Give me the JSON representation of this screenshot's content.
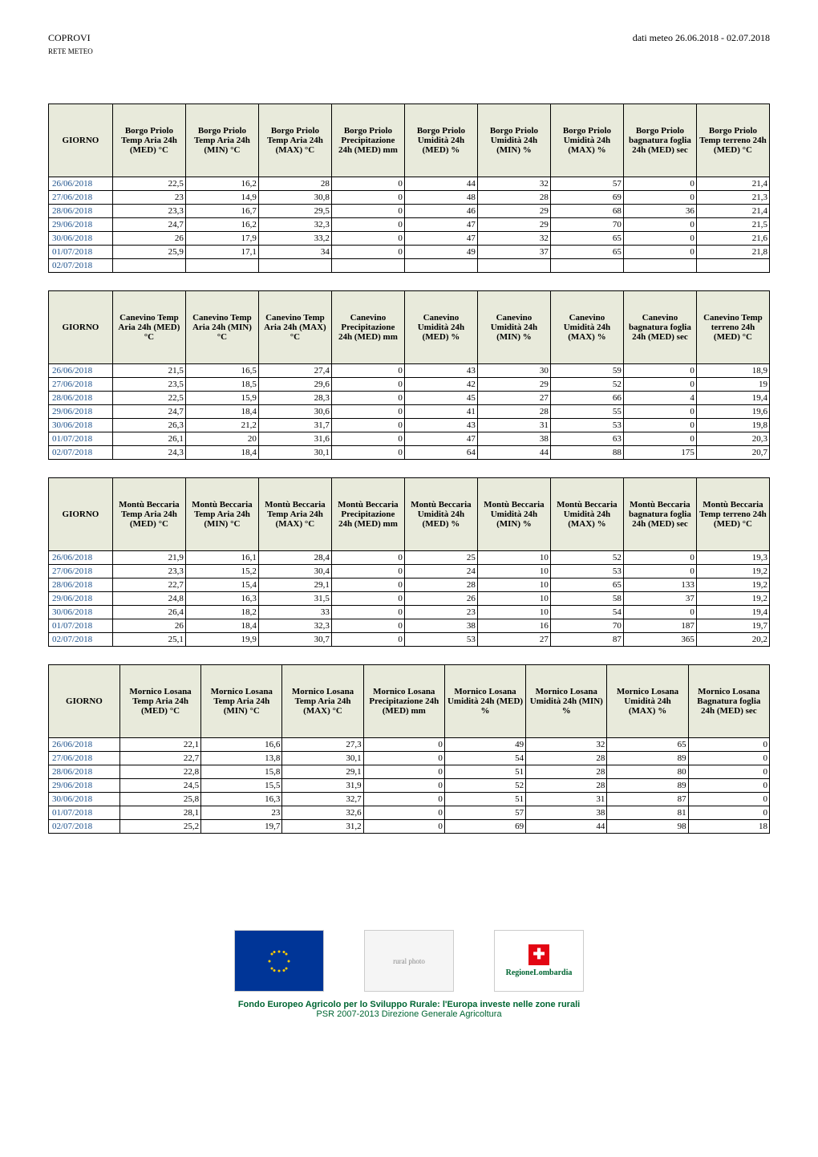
{
  "header": {
    "org": "COPROVI",
    "sub": "RETE METEO",
    "title": "dati meteo  26.06.2018 - 02.07.2018"
  },
  "column_labels": {
    "giorno": "GIORNO",
    "temp_med": "Temp Aria 24h (MED) °C",
    "temp_min": "Temp Aria 24h (MIN) °C",
    "temp_max": "Temp Aria 24h (MAX) °C",
    "precip": "Precipitazione 24h (MED) mm",
    "umid_med": "Umidità 24h (MED) %",
    "umid_min": "Umidità 24h (MIN) %",
    "umid_max": "Umidità 24h (MAX) %",
    "bagn": "bagnatura foglia 24h (MED) sec",
    "bagn_cap": "Bagnatura foglia 24h (MED) sec",
    "terr": "Temp terreno 24h (MED) °C"
  },
  "stations": [
    {
      "name": "Borgo Priolo",
      "has_terreno": true,
      "rows": [
        {
          "date": "26/06/2018",
          "tmed": "22,5",
          "tmin": "16,2",
          "tmax": "28",
          "prec": "0",
          "umed": "44",
          "umin": "32",
          "umax": "57",
          "bagn": "0",
          "terr": "21,4"
        },
        {
          "date": "27/06/2018",
          "tmed": "23",
          "tmin": "14,9",
          "tmax": "30,8",
          "prec": "0",
          "umed": "48",
          "umin": "28",
          "umax": "69",
          "bagn": "0",
          "terr": "21,3"
        },
        {
          "date": "28/06/2018",
          "tmed": "23,3",
          "tmin": "16,7",
          "tmax": "29,5",
          "prec": "0",
          "umed": "46",
          "umin": "29",
          "umax": "68",
          "bagn": "36",
          "terr": "21,4"
        },
        {
          "date": "29/06/2018",
          "tmed": "24,7",
          "tmin": "16,2",
          "tmax": "32,3",
          "prec": "0",
          "umed": "47",
          "umin": "29",
          "umax": "70",
          "bagn": "0",
          "terr": "21,5"
        },
        {
          "date": "30/06/2018",
          "tmed": "26",
          "tmin": "17,9",
          "tmax": "33,2",
          "prec": "0",
          "umed": "47",
          "umin": "32",
          "umax": "65",
          "bagn": "0",
          "terr": "21,6"
        },
        {
          "date": "01/07/2018",
          "tmed": "25,9",
          "tmin": "17,1",
          "tmax": "34",
          "prec": "0",
          "umed": "49",
          "umin": "37",
          "umax": "65",
          "bagn": "0",
          "terr": "21,8"
        },
        {
          "date": "02/07/2018",
          "tmed": "",
          "tmin": "",
          "tmax": "",
          "prec": "",
          "umed": "",
          "umin": "",
          "umax": "",
          "bagn": "",
          "terr": ""
        }
      ]
    },
    {
      "name": "Canevino",
      "has_terreno": true,
      "rows": [
        {
          "date": "26/06/2018",
          "tmed": "21,5",
          "tmin": "16,5",
          "tmax": "27,4",
          "prec": "0",
          "umed": "43",
          "umin": "30",
          "umax": "59",
          "bagn": "0",
          "terr": "18,9"
        },
        {
          "date": "27/06/2018",
          "tmed": "23,5",
          "tmin": "18,5",
          "tmax": "29,6",
          "prec": "0",
          "umed": "42",
          "umin": "29",
          "umax": "52",
          "bagn": "0",
          "terr": "19"
        },
        {
          "date": "28/06/2018",
          "tmed": "22,5",
          "tmin": "15,9",
          "tmax": "28,3",
          "prec": "0",
          "umed": "45",
          "umin": "27",
          "umax": "66",
          "bagn": "4",
          "terr": "19,4"
        },
        {
          "date": "29/06/2018",
          "tmed": "24,7",
          "tmin": "18,4",
          "tmax": "30,6",
          "prec": "0",
          "umed": "41",
          "umin": "28",
          "umax": "55",
          "bagn": "0",
          "terr": "19,6"
        },
        {
          "date": "30/06/2018",
          "tmed": "26,3",
          "tmin": "21,2",
          "tmax": "31,7",
          "prec": "0",
          "umed": "43",
          "umin": "31",
          "umax": "53",
          "bagn": "0",
          "terr": "19,8"
        },
        {
          "date": "01/07/2018",
          "tmed": "26,1",
          "tmin": "20",
          "tmax": "31,6",
          "prec": "0",
          "umed": "47",
          "umin": "38",
          "umax": "63",
          "bagn": "0",
          "terr": "20,3"
        },
        {
          "date": "02/07/2018",
          "tmed": "24,3",
          "tmin": "18,4",
          "tmax": "30,1",
          "prec": "0",
          "umed": "64",
          "umin": "44",
          "umax": "88",
          "bagn": "175",
          "terr": "20,7"
        }
      ]
    },
    {
      "name": "Montù Beccaria",
      "has_terreno": true,
      "rows": [
        {
          "date": "26/06/2018",
          "tmed": "21,9",
          "tmin": "16,1",
          "tmax": "28,4",
          "prec": "0",
          "umed": "25",
          "umin": "10",
          "umax": "52",
          "bagn": "0",
          "terr": "19,3"
        },
        {
          "date": "27/06/2018",
          "tmed": "23,3",
          "tmin": "15,2",
          "tmax": "30,4",
          "prec": "0",
          "umed": "24",
          "umin": "10",
          "umax": "53",
          "bagn": "0",
          "terr": "19,2"
        },
        {
          "date": "28/06/2018",
          "tmed": "22,7",
          "tmin": "15,4",
          "tmax": "29,1",
          "prec": "0",
          "umed": "28",
          "umin": "10",
          "umax": "65",
          "bagn": "133",
          "terr": "19,2"
        },
        {
          "date": "29/06/2018",
          "tmed": "24,8",
          "tmin": "16,3",
          "tmax": "31,5",
          "prec": "0",
          "umed": "26",
          "umin": "10",
          "umax": "58",
          "bagn": "37",
          "terr": "19,2"
        },
        {
          "date": "30/06/2018",
          "tmed": "26,4",
          "tmin": "18,2",
          "tmax": "33",
          "prec": "0",
          "umed": "23",
          "umin": "10",
          "umax": "54",
          "bagn": "0",
          "terr": "19,4"
        },
        {
          "date": "01/07/2018",
          "tmed": "26",
          "tmin": "18,4",
          "tmax": "32,3",
          "prec": "0",
          "umed": "38",
          "umin": "16",
          "umax": "70",
          "bagn": "187",
          "terr": "19,7"
        },
        {
          "date": "02/07/2018",
          "tmed": "25,1",
          "tmin": "19,9",
          "tmax": "30,7",
          "prec": "0",
          "umed": "53",
          "umin": "27",
          "umax": "87",
          "bagn": "365",
          "terr": "20,2"
        }
      ]
    },
    {
      "name": "Mornico Losana",
      "has_terreno": false,
      "rows": [
        {
          "date": "26/06/2018",
          "tmed": "22,1",
          "tmin": "16,6",
          "tmax": "27,3",
          "prec": "0",
          "umed": "49",
          "umin": "32",
          "umax": "65",
          "bagn": "0"
        },
        {
          "date": "27/06/2018",
          "tmed": "22,7",
          "tmin": "13,8",
          "tmax": "30,1",
          "prec": "0",
          "umed": "54",
          "umin": "28",
          "umax": "89",
          "bagn": "0"
        },
        {
          "date": "28/06/2018",
          "tmed": "22,8",
          "tmin": "15,8",
          "tmax": "29,1",
          "prec": "0",
          "umed": "51",
          "umin": "28",
          "umax": "80",
          "bagn": "0"
        },
        {
          "date": "29/06/2018",
          "tmed": "24,5",
          "tmin": "15,5",
          "tmax": "31,9",
          "prec": "0",
          "umed": "52",
          "umin": "28",
          "umax": "89",
          "bagn": "0"
        },
        {
          "date": "30/06/2018",
          "tmed": "25,8",
          "tmin": "16,3",
          "tmax": "32,7",
          "prec": "0",
          "umed": "51",
          "umin": "31",
          "umax": "87",
          "bagn": "0"
        },
        {
          "date": "01/07/2018",
          "tmed": "28,1",
          "tmin": "23",
          "tmax": "32,6",
          "prec": "0",
          "umed": "57",
          "umin": "38",
          "umax": "81",
          "bagn": "0"
        },
        {
          "date": "02/07/2018",
          "tmed": "25,2",
          "tmin": "19,7",
          "tmax": "31,2",
          "prec": "0",
          "umed": "69",
          "umin": "44",
          "umax": "98",
          "bagn": "18"
        }
      ]
    }
  ],
  "footer": {
    "logo_eu": "EU flag",
    "logo_photo": "rural photo",
    "logo_region": "RegioneLombardia",
    "line1": "Fondo Europeo Agricolo per lo Sviluppo Rurale: l'Europa investe nelle zone rurali",
    "line2": "PSR 2007-2013 Direzione Generale Agricoltura"
  }
}
